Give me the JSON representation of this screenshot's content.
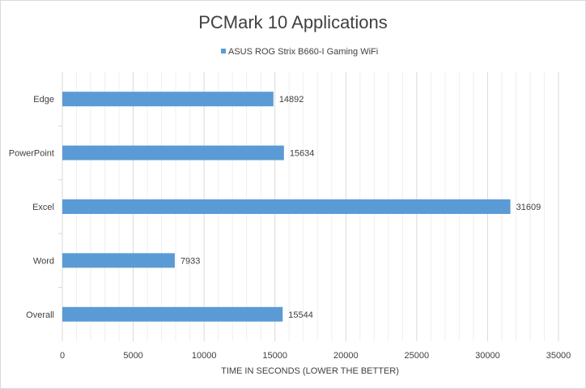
{
  "chart_data": {
    "type": "bar",
    "orientation": "horizontal",
    "title": "PCMark 10 Applications",
    "categories": [
      "Edge",
      "PowerPoint",
      "Excel",
      "Word",
      "Overall"
    ],
    "series": [
      {
        "name": "ASUS ROG Strix B660-I Gaming WiFi",
        "color": "#5b9bd5",
        "values": [
          14892,
          15634,
          31609,
          7933,
          15544
        ]
      }
    ],
    "xlabel": "TIME IN SECONDS (LOWER THE BETTER)",
    "ylabel": "",
    "xlim": [
      0,
      35000
    ],
    "xticks": [
      0,
      5000,
      10000,
      15000,
      20000,
      25000,
      30000,
      35000
    ],
    "minor_grid_step": 1000,
    "grid": true,
    "legend": "top-center",
    "data_labels": true
  }
}
